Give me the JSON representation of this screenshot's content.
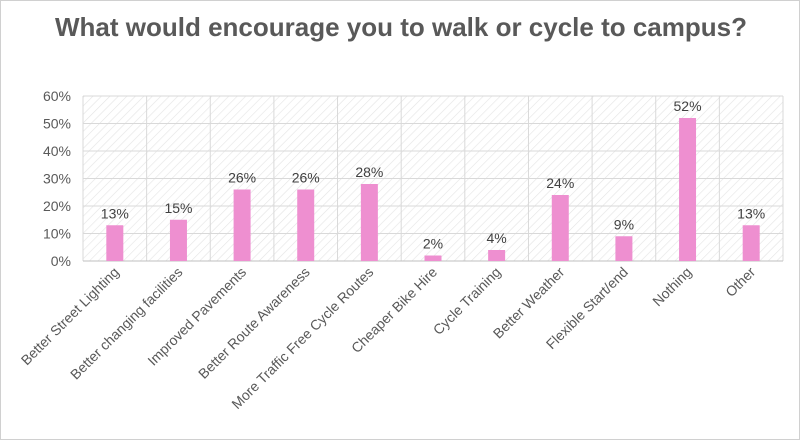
{
  "chart_data": {
    "type": "bar",
    "title": "What would encourage you to walk or cycle to campus?",
    "categories": [
      "Better Street Lighting",
      "Better changing facilities",
      "Improved Pavements",
      "Better Route Awareness",
      "More Traffic Free Cycle Routes",
      "Cheaper Bike Hire",
      "Cycle Training",
      "Better Weather",
      "Flexible Start/end",
      "Nothing",
      "Other"
    ],
    "values": [
      13,
      15,
      26,
      26,
      28,
      2,
      4,
      24,
      9,
      52,
      13
    ],
    "data_labels": [
      "13%",
      "15%",
      "26%",
      "26%",
      "28%",
      "2%",
      "4%",
      "24%",
      "9%",
      "52%",
      "13%"
    ],
    "ylim": [
      0,
      60
    ],
    "yticks": [
      0,
      10,
      20,
      30,
      40,
      50,
      60
    ],
    "ytick_labels": [
      "0%",
      "10%",
      "20%",
      "30%",
      "40%",
      "50%",
      "60%"
    ],
    "xlabel": "",
    "ylabel": "",
    "grid": true,
    "legend": "none",
    "bar_color": "#ee8fd0",
    "text_color": "#595959"
  }
}
